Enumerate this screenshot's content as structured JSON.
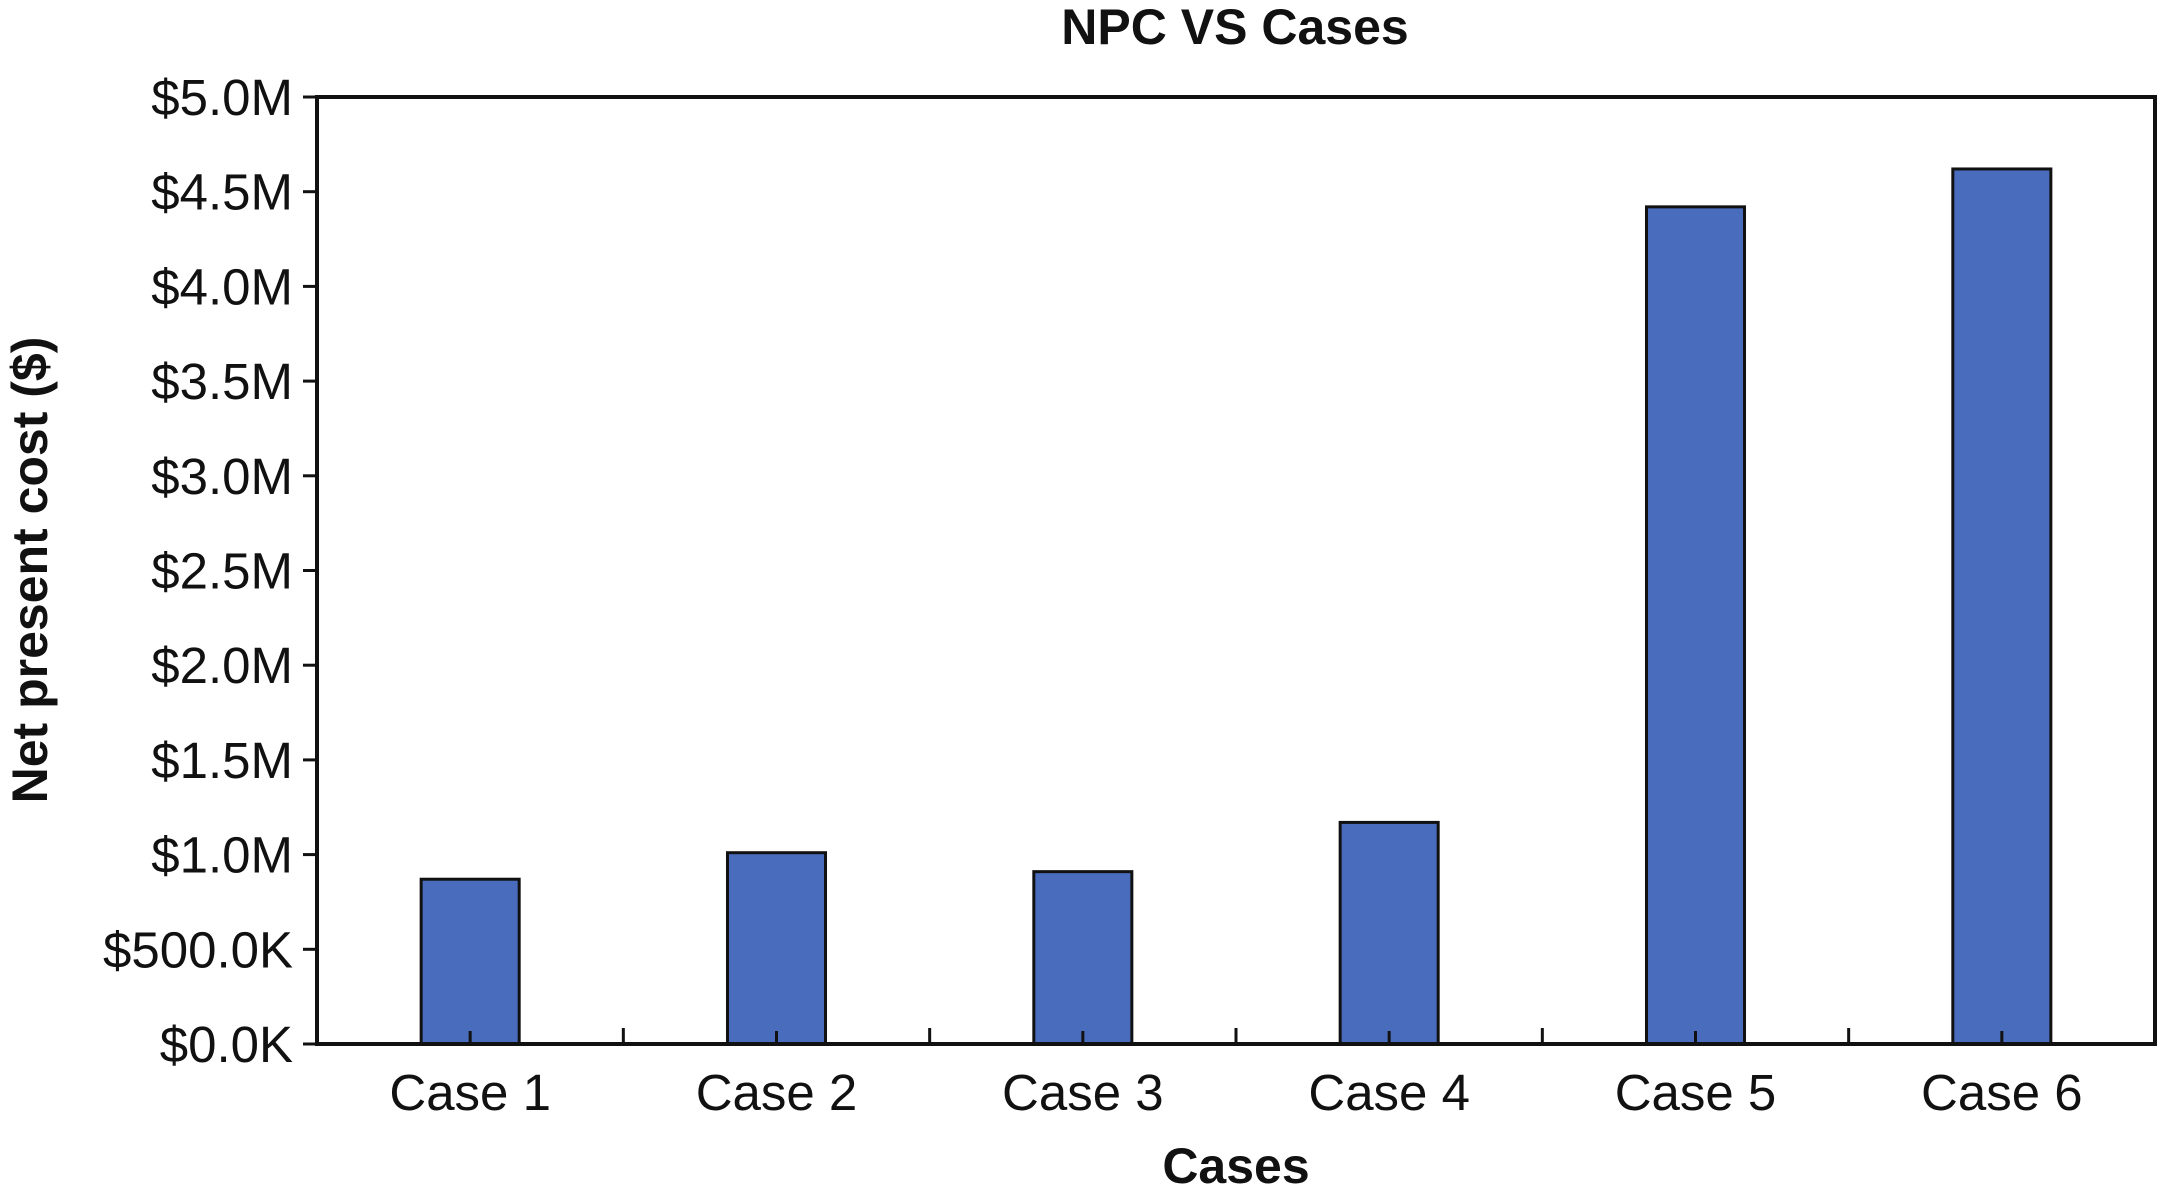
{
  "chart_data": {
    "type": "bar",
    "title": "NPC VS Cases",
    "xlabel": "Cases",
    "ylabel": "Net present cost ($)",
    "categories": [
      "Case 1",
      "Case 2",
      "Case 3",
      "Case 4",
      "Case 5",
      "Case 6"
    ],
    "series": [
      {
        "values": [
          870000,
          1010000,
          910000,
          1170000,
          4420000,
          4620000
        ]
      }
    ],
    "ylim": [
      0,
      5000000
    ],
    "yticks": [
      0,
      500000,
      1000000,
      1500000,
      2000000,
      2500000,
      3000000,
      3500000,
      4000000,
      4500000,
      5000000
    ],
    "ytick_labels": [
      "$0.0K",
      "$500.0K",
      "$1.0M",
      "$1.5M",
      "$2.0M",
      "$2.5M",
      "$3.0M",
      "$3.5M",
      "$4.0M",
      "$4.5M",
      "$5.0M"
    ],
    "bar_color": "#4a6cbd",
    "grid": false,
    "legend": "none"
  }
}
